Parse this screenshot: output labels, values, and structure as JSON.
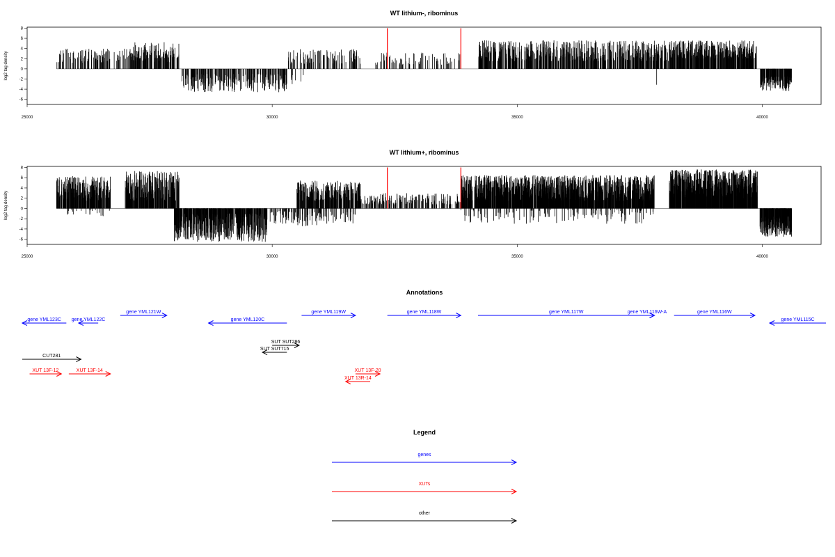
{
  "chart_data": [
    {
      "type": "bar",
      "title": "WT lithium-, ribominus",
      "ylabel": "log2 tag density",
      "xlim": [
        25000,
        41200
      ],
      "ylim": [
        -7,
        8.2
      ],
      "xticks": [
        "25000",
        "30000",
        "35000",
        "40000"
      ],
      "yticks": [
        "8",
        "6",
        "4",
        "2",
        "0",
        "-2",
        "-4",
        "-6"
      ],
      "marker_lines": {
        "color": "#ff0000",
        "positions": [
          32350,
          33850
        ]
      },
      "segments": [
        {
          "start": 25600,
          "end": 28100,
          "sign": 1,
          "min": 1.2,
          "max": 4.0,
          "density": 0.9
        },
        {
          "start": 27100,
          "end": 28100,
          "sign": 1,
          "min": 2.0,
          "max": 5.3,
          "density": 1.2
        },
        {
          "start": 28150,
          "end": 30300,
          "sign": -1,
          "min": 1.0,
          "max": 4.6,
          "density": 1.6
        },
        {
          "start": 30350,
          "end": 30700,
          "sign": -1,
          "min": 0.5,
          "max": 3.4,
          "density": 0.3
        },
        {
          "start": 30300,
          "end": 31800,
          "sign": 1,
          "min": 1.0,
          "max": 3.9,
          "density": 1.0
        },
        {
          "start": 32100,
          "end": 33850,
          "sign": 1,
          "min": 0.8,
          "max": 3.2,
          "density": 0.6
        },
        {
          "start": 34200,
          "end": 38100,
          "sign": 1,
          "min": 1.5,
          "max": 5.6,
          "density": 2.2
        },
        {
          "start": 37800,
          "end": 37850,
          "sign": -1,
          "min": 3.0,
          "max": 3.3,
          "density": 0.2
        },
        {
          "start": 38100,
          "end": 39900,
          "sign": 1,
          "min": 2.0,
          "max": 5.6,
          "density": 3.0
        },
        {
          "start": 39950,
          "end": 40600,
          "sign": -1,
          "min": 1.5,
          "max": 4.4,
          "density": 3.2
        }
      ]
    },
    {
      "type": "bar",
      "title": "WT lithium+, ribominus",
      "ylabel": "log2 tag density",
      "xlim": [
        25000,
        41200
      ],
      "ylim": [
        -7,
        8.2
      ],
      "xticks": [
        "25000",
        "30000",
        "35000",
        "40000"
      ],
      "yticks": [
        "8",
        "6",
        "4",
        "2",
        "0",
        "-2",
        "-4",
        "-6"
      ],
      "marker_lines": {
        "color": "#ff0000",
        "positions": [
          32350,
          33850
        ]
      },
      "segments": [
        {
          "start": 25600,
          "end": 26700,
          "sign": 1,
          "min": 1.5,
          "max": 6.3,
          "density": 3.5
        },
        {
          "start": 25600,
          "end": 26700,
          "sign": -1,
          "min": 0.2,
          "max": 1.5,
          "density": 0.3
        },
        {
          "start": 27000,
          "end": 28100,
          "sign": 1,
          "min": 1.5,
          "max": 7.3,
          "density": 3.5
        },
        {
          "start": 28000,
          "end": 29900,
          "sign": -1,
          "min": 1.0,
          "max": 6.5,
          "density": 3.5
        },
        {
          "start": 29950,
          "end": 30550,
          "sign": -1,
          "min": 0.5,
          "max": 3.0,
          "density": 1.0
        },
        {
          "start": 30500,
          "end": 31800,
          "sign": 1,
          "min": 1.5,
          "max": 5.5,
          "density": 3.0
        },
        {
          "start": 30500,
          "end": 31700,
          "sign": -1,
          "min": 0.5,
          "max": 3.5,
          "density": 0.8
        },
        {
          "start": 31800,
          "end": 33850,
          "sign": 1,
          "min": 0.8,
          "max": 3.0,
          "density": 1.2
        },
        {
          "start": 33850,
          "end": 37800,
          "sign": 1,
          "min": 1.5,
          "max": 6.5,
          "density": 5.0
        },
        {
          "start": 33850,
          "end": 37800,
          "sign": -1,
          "min": 0.3,
          "max": 3.0,
          "density": 0.5
        },
        {
          "start": 38100,
          "end": 39900,
          "sign": 1,
          "min": 2.0,
          "max": 7.6,
          "density": 6.0
        },
        {
          "start": 39950,
          "end": 40600,
          "sign": -1,
          "min": 1.5,
          "max": 5.5,
          "density": 5.0
        }
      ]
    }
  ],
  "annotations": {
    "title": "Annotations",
    "xlim": [
      25000,
      41200
    ],
    "items": [
      {
        "label": "gene YML123C",
        "start": 24900,
        "end": 25800,
        "dir": "left",
        "row": 1,
        "color": "#0000ff"
      },
      {
        "label": "gene YML122C",
        "start": 26050,
        "end": 26450,
        "dir": "left",
        "row": 1,
        "color": "#0000ff"
      },
      {
        "label": "gene YML121W",
        "start": 26900,
        "end": 27850,
        "dir": "right",
        "row": 0,
        "color": "#0000ff"
      },
      {
        "label": "gene YML120C",
        "start": 28700,
        "end": 30300,
        "dir": "left",
        "row": 1,
        "color": "#0000ff"
      },
      {
        "label": "gene YML119W",
        "start": 30600,
        "end": 31700,
        "dir": "right",
        "row": 0,
        "color": "#0000ff"
      },
      {
        "label": "gene YML118W",
        "start": 32350,
        "end": 33850,
        "dir": "right",
        "row": 0,
        "color": "#0000ff"
      },
      {
        "label": "gene YML117W",
        "start": 34200,
        "end": 37800,
        "dir": "right",
        "row": 0,
        "color": "#0000ff"
      },
      {
        "label": "gene YML116W-A",
        "start": 37500,
        "end": 37800,
        "dir": "right",
        "row": 0,
        "color": "#0000ff"
      },
      {
        "label": "gene YML116W",
        "start": 38200,
        "end": 39850,
        "dir": "right",
        "row": 0,
        "color": "#0000ff"
      },
      {
        "label": "gene YML115C",
        "start": 40150,
        "end": 41300,
        "dir": "left",
        "row": 1,
        "color": "#0000ff"
      },
      {
        "label": "SUT SUT286",
        "start": 30000,
        "end": 30550,
        "dir": "right",
        "row": 3,
        "color": "#000000"
      },
      {
        "label": "SUT SUT715",
        "start": 29800,
        "end": 30300,
        "dir": "left",
        "row": 4,
        "color": "#000000"
      },
      {
        "label": "CUT281",
        "start": 24900,
        "end": 26100,
        "dir": "right",
        "row": 5,
        "color": "#000000"
      },
      {
        "label": "XUT 13F-12",
        "start": 25050,
        "end": 25700,
        "dir": "right",
        "row": 6,
        "color": "#ff0000"
      },
      {
        "label": "XUT 13F-14",
        "start": 25850,
        "end": 26700,
        "dir": "right",
        "row": 6,
        "color": "#ff0000"
      },
      {
        "label": "XUT 13F-20",
        "start": 31700,
        "end": 32200,
        "dir": "right",
        "row": 6,
        "color": "#ff0000"
      },
      {
        "label": "XUT 13R-14",
        "start": 31500,
        "end": 32000,
        "dir": "left",
        "row": 7,
        "color": "#ff0000"
      }
    ]
  },
  "legend": {
    "title": "Legend",
    "entries": [
      {
        "label": "genes",
        "color": "#0000ff"
      },
      {
        "label": "XUTs",
        "color": "#ff0000"
      },
      {
        "label": "other",
        "color": "#000000"
      }
    ]
  }
}
